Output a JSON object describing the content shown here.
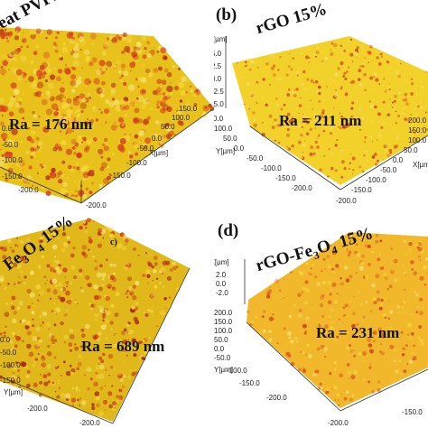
{
  "panels": [
    {
      "id": "a",
      "label": "",
      "title": "eat PVPE",
      "ra": "Ra = 176 nm",
      "axes": {
        "x_ticks": [
          "150.0",
          "100.0",
          "50.0",
          "0.0",
          "-50.0",
          "-100.0",
          "-150.0",
          "-200.0"
        ],
        "y_ticks": [
          "0.0",
          "-50.0",
          "-100.0",
          "-150.0",
          "-200.0"
        ],
        "x_name": "X[µm]"
      },
      "colors": {
        "base": "#e8c21a",
        "peak": "#d8401e",
        "deep": "#b52a18"
      }
    },
    {
      "id": "b",
      "label": "(b)",
      "title": "rGO 15%",
      "ra": "Ra = 211 nm",
      "axes": {
        "z_ticks": [
          "5.0",
          "2.5",
          "0.0",
          "-2.5",
          "-5.0"
        ],
        "z_name": "Z[µm]",
        "y_ticks": [
          "150.0",
          "100.0",
          "50.0",
          "0.0",
          "-50.0",
          "-100.0",
          "-150.0",
          "-200.0"
        ],
        "x_ticks": [
          "200.0",
          "150.0",
          "100.0",
          "50.0",
          "0.0",
          "-50.0",
          "-100.0",
          "-150.0",
          "-200.0"
        ],
        "y_name": "Y[µm]",
        "x_name": "X[µm]"
      },
      "colors": {
        "base": "#f2d12a",
        "peak": "#d94a1c",
        "deep": "#c23a16"
      }
    },
    {
      "id": "c",
      "label": "c)",
      "title_prefix": "Fe",
      "title_sub1": "3",
      "title_mid": "O",
      "title_sub2": "4",
      "title_suffix": " 15%",
      "ra": "Ra = 689 nm",
      "axes": {
        "y_ticks": [
          "0.0",
          "-50.0",
          "-100.0",
          "-150.0",
          "-200.0"
        ],
        "y_name": "Y[µm]",
        "x_ticks": [
          "-200.0",
          "-100.0",
          "0.0"
        ]
      },
      "colors": {
        "base": "#e0b81a",
        "peak": "#cc3a18",
        "deep": "#a82414"
      }
    },
    {
      "id": "d",
      "label": "(d)",
      "title_prefix": "rGO-Fe",
      "title_sub1": "3",
      "title_mid": "O",
      "title_sub2": "4",
      "title_suffix": " 15%",
      "ra": "Ra = 231 nm",
      "axes": {
        "z_ticks": [
          "2.0",
          "0.0",
          "-2.0"
        ],
        "z_name": "Z[µm]",
        "y_ticks": [
          "200.0",
          "150.0",
          "100.0",
          "50.0",
          "0.0",
          "-50.0",
          "-100.0",
          "-150.0",
          "-200.0"
        ],
        "y_name": "Y[µm]",
        "x_ticks": [
          "-150.0",
          "-200.0"
        ]
      },
      "colors": {
        "base": "#f0b82a",
        "peak": "#e25a1e",
        "deep": "#c8401a"
      }
    }
  ]
}
